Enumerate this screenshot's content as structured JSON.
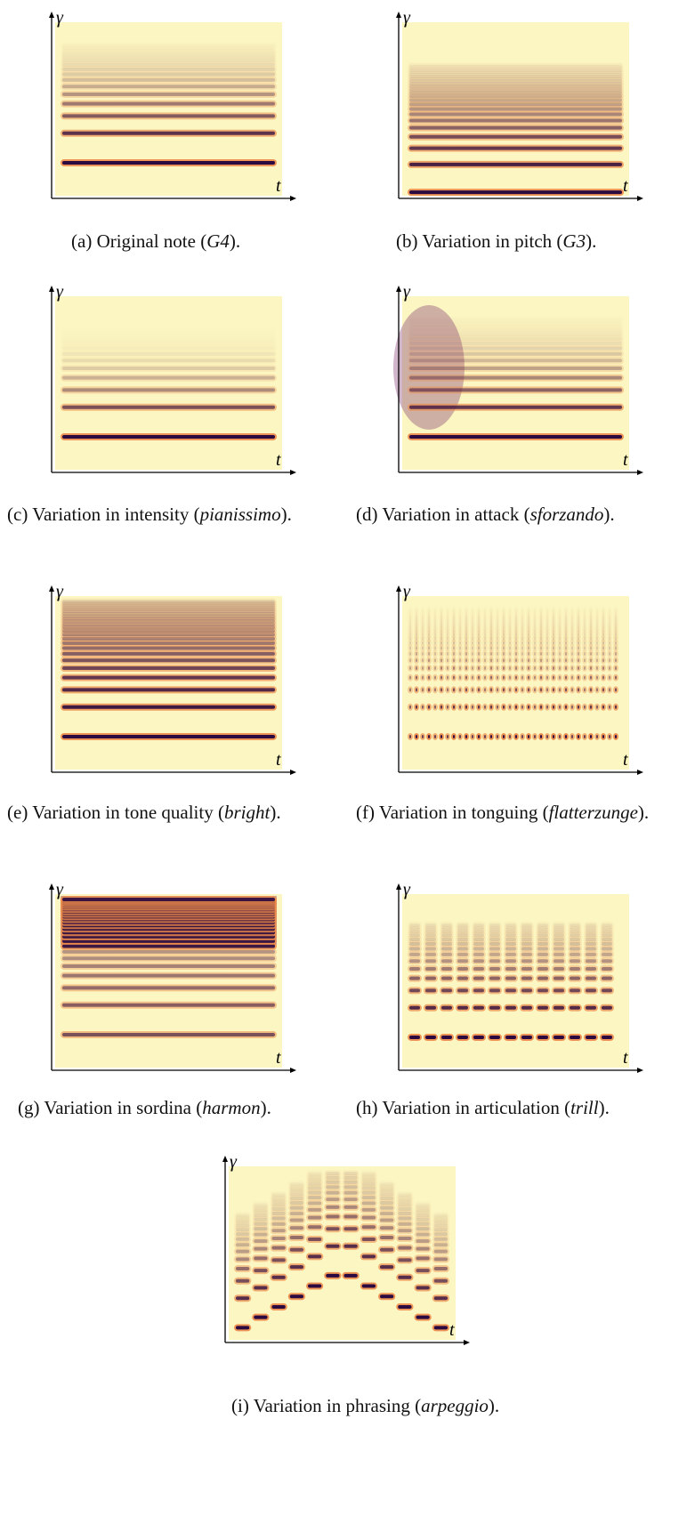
{
  "axes": {
    "y": "γ",
    "x": "t"
  },
  "panels": [
    {
      "label": "(a)",
      "text": "Original note (",
      "emph": "G4",
      "end": ")."
    },
    {
      "label": "(b)",
      "text": "Variation in pitch (",
      "emph": "G3",
      "end": ")."
    },
    {
      "label": "(c)",
      "text": "Variation in intensity (",
      "emph": "pianissimo",
      "end": ")."
    },
    {
      "label": "(d)",
      "text": "Variation in attack (",
      "emph": "sforzando",
      "end": ")."
    },
    {
      "label": "(e)",
      "text": "Variation in tone quality (",
      "emph": "bright",
      "end": ")."
    },
    {
      "label": "(f)",
      "text": "Variation in tonguing (",
      "emph": "flatterzunge",
      "end": ")."
    },
    {
      "label": "(g)",
      "text": "Variation in sordina (",
      "emph": "harmon",
      "end": ")."
    },
    {
      "label": "(h)",
      "text": "Variation in articulation (",
      "emph": "trill",
      "end": ")."
    },
    {
      "label": "(i)",
      "text": "Variation in phrasing (",
      "emph": "arpeggio",
      "end": ")."
    }
  ]
}
